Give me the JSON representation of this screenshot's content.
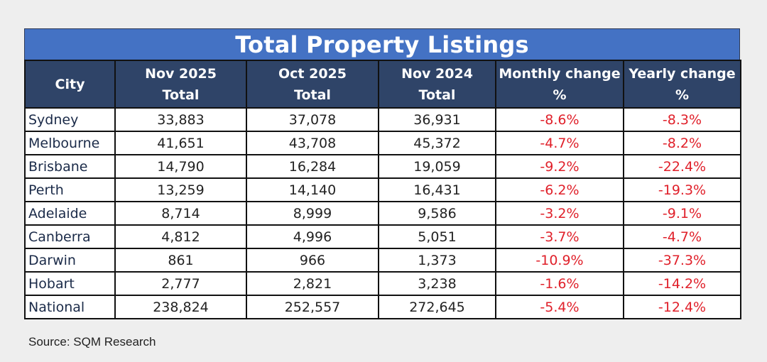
{
  "title": "Total Property Listings",
  "headers": [
    {
      "line1": "City",
      "line2": ""
    },
    {
      "line1": "Nov 2025",
      "line2": "Total"
    },
    {
      "line1": "Oct 2025",
      "line2": "Total"
    },
    {
      "line1": "Nov 2024",
      "line2": "Total"
    },
    {
      "line1": "Monthly change",
      "line2": "%"
    },
    {
      "line1": "Yearly change",
      "line2": "%"
    }
  ],
  "rows": [
    {
      "city": "Sydney",
      "nov2025": "33,883",
      "oct2025": "37,078",
      "nov2024": "36,931",
      "monthly": "-8.6%",
      "yearly": "-8.3%"
    },
    {
      "city": "Melbourne",
      "nov2025": "41,651",
      "oct2025": "43,708",
      "nov2024": "45,372",
      "monthly": "-4.7%",
      "yearly": "-8.2%"
    },
    {
      "city": "Brisbane",
      "nov2025": "14,790",
      "oct2025": "16,284",
      "nov2024": "19,059",
      "monthly": "-9.2%",
      "yearly": "-22.4%"
    },
    {
      "city": "Perth",
      "nov2025": "13,259",
      "oct2025": "14,140",
      "nov2024": "16,431",
      "monthly": "-6.2%",
      "yearly": "-19.3%"
    },
    {
      "city": "Adelaide",
      "nov2025": "8,714",
      "oct2025": "8,999",
      "nov2024": "9,586",
      "monthly": "-3.2%",
      "yearly": "-9.1%"
    },
    {
      "city": "Canberra",
      "nov2025": "4,812",
      "oct2025": "4,996",
      "nov2024": "5,051",
      "monthly": "-3.7%",
      "yearly": "-4.7%"
    },
    {
      "city": "Darwin",
      "nov2025": "861",
      "oct2025": "966",
      "nov2024": "1,373",
      "monthly": "-10.9%",
      "yearly": "-37.3%"
    },
    {
      "city": "Hobart",
      "nov2025": "2,777",
      "oct2025": "2,821",
      "nov2024": "3,238",
      "monthly": "-1.6%",
      "yearly": "-14.2%"
    },
    {
      "city": "National",
      "nov2025": "238,824",
      "oct2025": "252,557",
      "nov2024": "272,645",
      "monthly": "-5.4%",
      "yearly": "-12.4%"
    }
  ],
  "source": "Source: SQM Research",
  "colors": {
    "title_bg": "#4472c4",
    "header_bg": "#2f4468",
    "negative": "#e0202a",
    "page_bg": "#eeeeee"
  }
}
